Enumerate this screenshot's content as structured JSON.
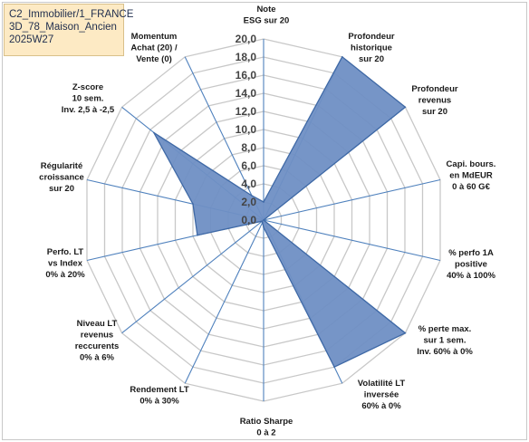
{
  "header": {
    "line1": "C2_Immobilier/1_FRANCE",
    "line2": "3D_78_Maison_Ancien",
    "line3": "2025W27"
  },
  "chart_data": {
    "type": "radar",
    "title": "",
    "r_min": 0,
    "r_max": 20,
    "r_step": 2,
    "tick_labels": [
      "0,0",
      "2,0",
      "4,0",
      "6,0",
      "8,0",
      "10,0",
      "12,0",
      "14,0",
      "16,0",
      "18,0",
      "20,0"
    ],
    "axes": [
      {
        "label": [
          "Note",
          "ESG sur 20"
        ]
      },
      {
        "label": [
          "Profondeur",
          "historique",
          "sur 20"
        ]
      },
      {
        "label": [
          "Profondeur",
          "revenus",
          "sur 20"
        ]
      },
      {
        "label": [
          "Capi. bours.",
          "en MdEUR",
          "0 à 60 G€"
        ]
      },
      {
        "label": [
          "% perfo 1A",
          "positive",
          "40% à 100%"
        ]
      },
      {
        "label": [
          "% perte max.",
          "sur 1 sem.",
          "Inv. 60% à 0%"
        ]
      },
      {
        "label": [
          "Volatilité LT",
          "inversée",
          "60% à 0%"
        ]
      },
      {
        "label": [
          "Ratio Sharpe",
          "0 à 2"
        ]
      },
      {
        "label": [
          "Rendement LT",
          "0% à 30%"
        ]
      },
      {
        "label": [
          "Niveau LT",
          "revenus",
          "reccurents",
          "0% à 6%"
        ]
      },
      {
        "label": [
          "Perfo. LT",
          "vs Index",
          "0% à 20%"
        ]
      },
      {
        "label": [
          "Régularité",
          "croissance",
          "sur 20"
        ]
      },
      {
        "label": [
          "Z-score",
          "10 sem.",
          "Inv. 2,5 à -2,5"
        ]
      },
      {
        "label": [
          "Momentum",
          "Achat (20) /",
          "Vente (0)"
        ]
      }
    ],
    "series": [
      {
        "values": [
          2.0,
          20.0,
          20.0,
          0.0,
          0.0,
          20.0,
          18.0,
          0.8,
          0.3,
          0.2,
          7.5,
          8.0,
          15.5,
          3.0
        ],
        "color": "#4f81bd"
      }
    ],
    "colors": {
      "fill": "#6f8fc4",
      "stroke": "#3f69a6",
      "grid": "#c8c8c8",
      "spoke": "#4f81bd",
      "title_bg": "#fdeac4"
    }
  }
}
